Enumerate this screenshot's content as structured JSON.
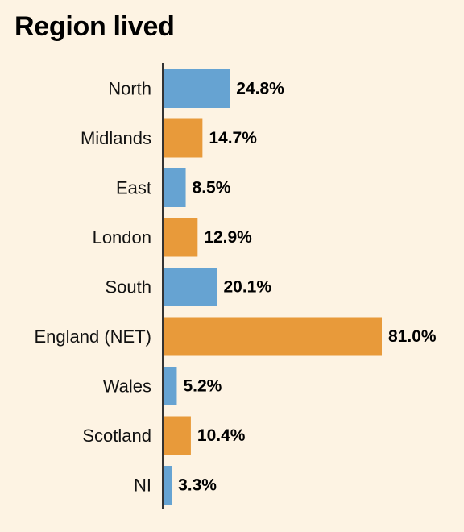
{
  "title": "Region lived",
  "colors": {
    "blue": "#66a3d2",
    "orange": "#e89a3a",
    "axis": "#333333",
    "background": "#fdf3e3"
  },
  "chart_data": {
    "type": "bar",
    "orientation": "horizontal",
    "title": "Region lived",
    "categories": [
      "North",
      "Midlands",
      "East",
      "London",
      "South",
      "England (NET)",
      "Wales",
      "Scotland",
      "NI"
    ],
    "values": [
      24.8,
      14.7,
      8.5,
      12.9,
      20.1,
      81.0,
      5.2,
      10.4,
      3.3
    ],
    "data_labels": [
      "24.8%",
      "14.7%",
      "8.5%",
      "12.9%",
      "20.1%",
      "81.0%",
      "5.2%",
      "10.4%",
      "3.3%"
    ],
    "bar_colors": [
      "#66a3d2",
      "#e89a3a",
      "#66a3d2",
      "#e89a3a",
      "#66a3d2",
      "#e89a3a",
      "#66a3d2",
      "#e89a3a",
      "#66a3d2"
    ],
    "xlim": [
      0,
      100
    ],
    "grid": false,
    "legend": "none"
  }
}
